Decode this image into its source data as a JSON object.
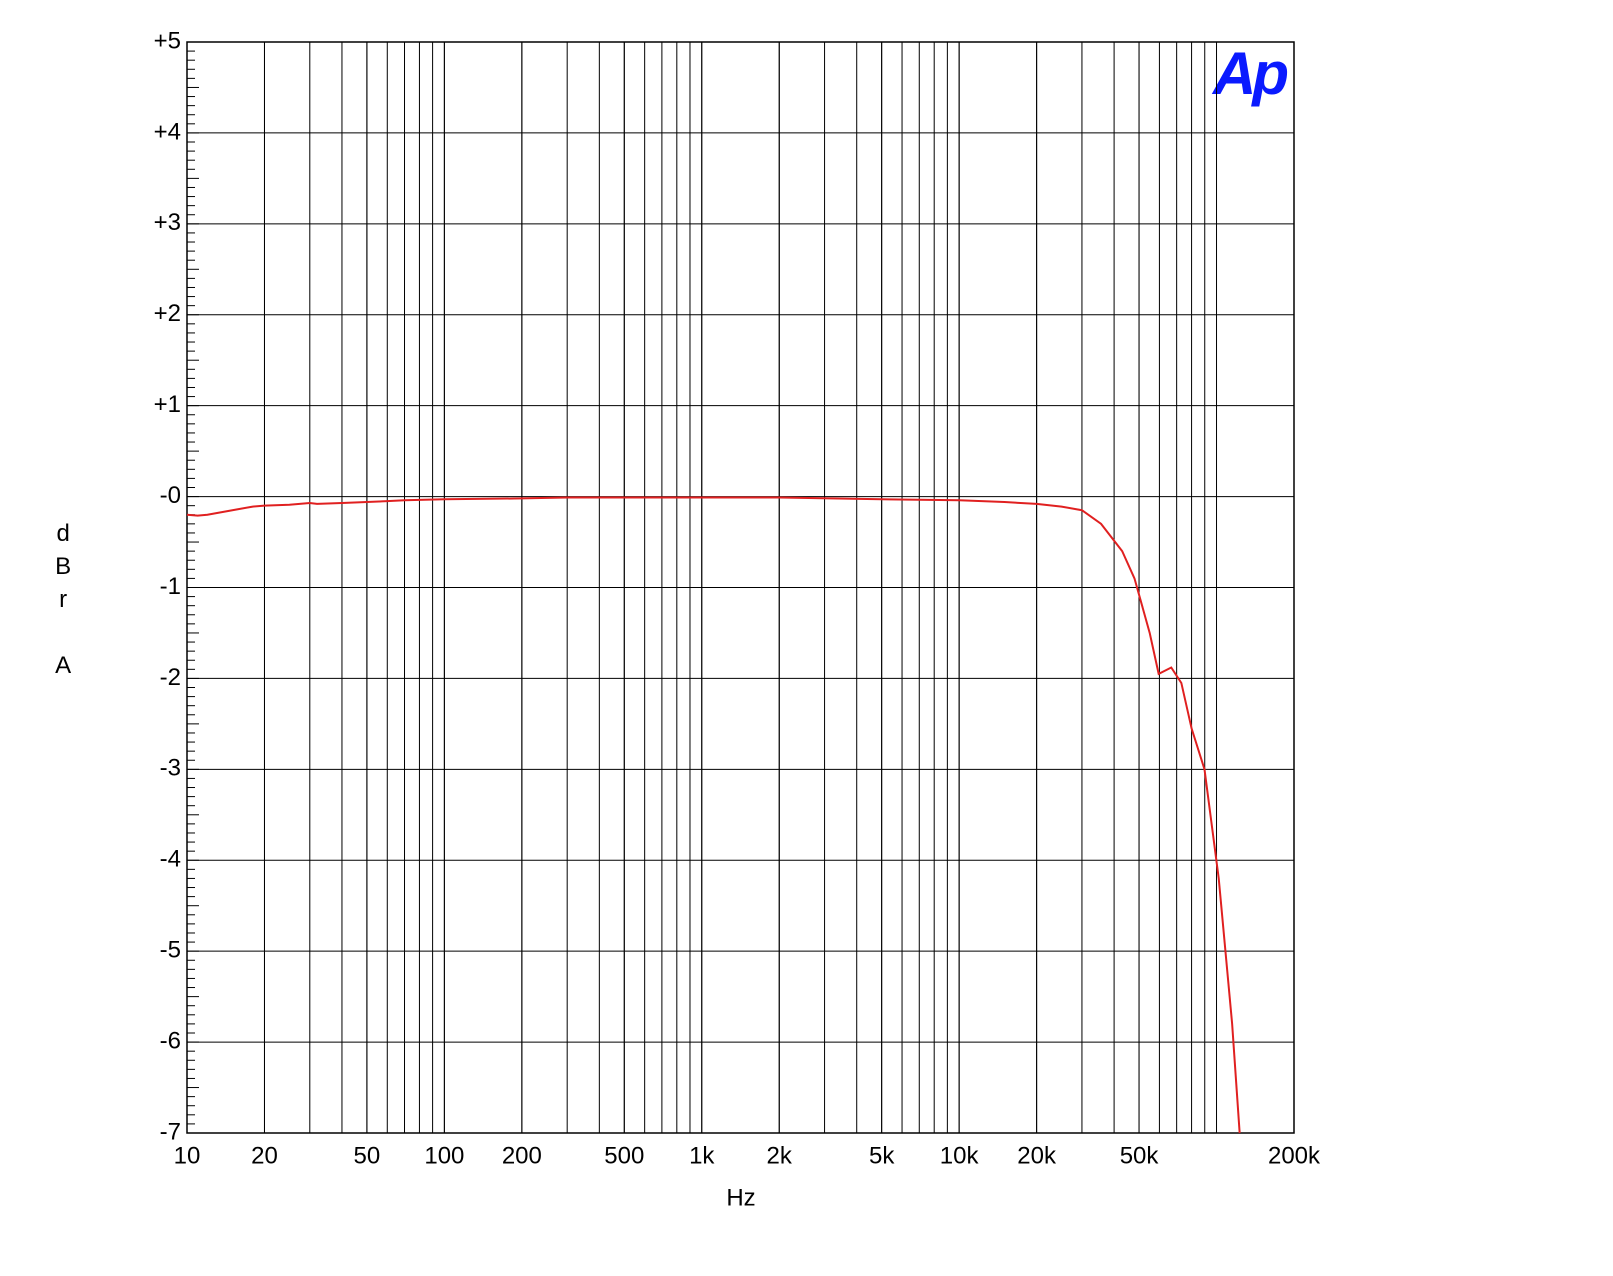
{
  "chart_data": {
    "type": "line",
    "logo": "Ap",
    "x_label": "Hz",
    "y_label": "dBr A",
    "xscale": "log",
    "grid": true,
    "xlim": [
      10,
      200000
    ],
    "ylim": [
      -7,
      5
    ],
    "xticks": [
      10,
      20,
      50,
      100,
      200,
      500,
      {
        "value": 1000,
        "label": "1k"
      },
      {
        "value": 2000,
        "label": "2k"
      },
      {
        "value": 5000,
        "label": "5k"
      },
      {
        "value": 10000,
        "label": "10k"
      },
      {
        "value": 20000,
        "label": "20k"
      },
      {
        "value": 50000,
        "label": "50k"
      },
      {
        "value": 200000,
        "label": "200k"
      }
    ],
    "yticks": [
      {
        "value": 5,
        "label": "+5"
      },
      {
        "value": 4,
        "label": "+4"
      },
      {
        "value": 3,
        "label": "+3"
      },
      {
        "value": 2,
        "label": "+2"
      },
      {
        "value": 1,
        "label": "+1"
      },
      {
        "value": 0,
        "label": "-0"
      },
      -1,
      -2,
      -3,
      -4,
      -5,
      -6,
      -7
    ],
    "x": [
      10,
      11,
      12,
      15,
      18,
      20,
      25,
      30,
      32,
      40,
      50,
      60,
      70,
      100,
      200,
      300,
      500,
      1000,
      2000,
      5000,
      10000,
      15000,
      20000,
      25000,
      30000,
      35600,
      43000,
      48000,
      55000,
      59600,
      66700,
      73000,
      80000,
      89800,
      102000,
      115000,
      123000
    ],
    "series": [
      {
        "color": "#e02020",
        "values": [
          -0.2,
          -0.21,
          -0.2,
          -0.15,
          -0.11,
          -0.1,
          -0.09,
          -0.07,
          -0.08,
          -0.07,
          -0.06,
          -0.05,
          -0.04,
          -0.03,
          -0.02,
          -0.01,
          -0.01,
          -0.01,
          -0.01,
          -0.03,
          -0.04,
          -0.06,
          -0.08,
          -0.11,
          -0.15,
          -0.3,
          -0.6,
          -0.9,
          -1.5,
          -1.95,
          -1.88,
          -2.05,
          -2.55,
          -3.0,
          -4.2,
          -5.8,
          -7.0
        ]
      }
    ]
  }
}
